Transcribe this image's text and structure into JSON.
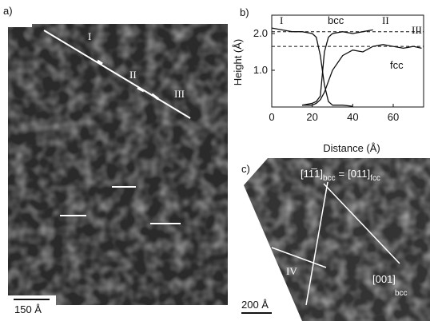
{
  "panel_a": {
    "label": "a)",
    "markers": [
      "I",
      "II",
      "III"
    ],
    "scale_bar": "150 Å"
  },
  "chart_data": {
    "type": "line",
    "label": "b)",
    "xlabel": "Distance (Å)",
    "ylabel": "Height (Å)",
    "xlim": [
      0,
      75
    ],
    "ylim": [
      0,
      2.5
    ],
    "xticks": [
      0,
      20,
      40,
      60
    ],
    "yticks": [
      {
        "value": 1,
        "label": "1.0"
      },
      {
        "value": 2,
        "label": "2.0"
      }
    ],
    "reference_lines": [
      2.05,
      1.65
    ],
    "annotations": [
      "I",
      "bcc",
      "II",
      "III",
      "fcc"
    ],
    "x": [
      0,
      5,
      10,
      15,
      20,
      22,
      24,
      26,
      28,
      30,
      35,
      40,
      45,
      50,
      55,
      60,
      65,
      70,
      74
    ],
    "series": [
      {
        "name": "I",
        "color": "#111",
        "values": [
          2.15,
          2.1,
          2.05,
          2.05,
          2.0,
          1.9,
          1.4,
          0.6,
          0.15,
          0.05,
          0.05,
          0.02,
          null,
          null,
          null,
          null,
          null,
          null,
          null
        ]
      },
      {
        "name": "II",
        "color": "#111",
        "values": [
          null,
          null,
          null,
          0.05,
          0.1,
          0.15,
          0.3,
          1.5,
          1.9,
          2.0,
          2.05,
          2.0,
          2.05,
          2.1,
          null,
          null,
          null,
          null,
          null
        ]
      },
      {
        "name": "III",
        "color": "#111",
        "values": [
          null,
          null,
          null,
          0.05,
          0.05,
          0.1,
          0.2,
          0.4,
          0.7,
          1.0,
          1.4,
          1.55,
          1.5,
          1.65,
          1.7,
          1.65,
          1.6,
          1.65,
          1.6
        ]
      }
    ]
  },
  "panel_c": {
    "label": "c)",
    "direction_bcc": "[11̅1]",
    "sub_bcc": "bcc",
    "equals": "=",
    "direction_fcc": "[011]",
    "sub_fcc": "fcc",
    "marker": "IV",
    "direction_001": "[001]",
    "sub_001": "bcc",
    "scale_bar": "200 Å"
  }
}
